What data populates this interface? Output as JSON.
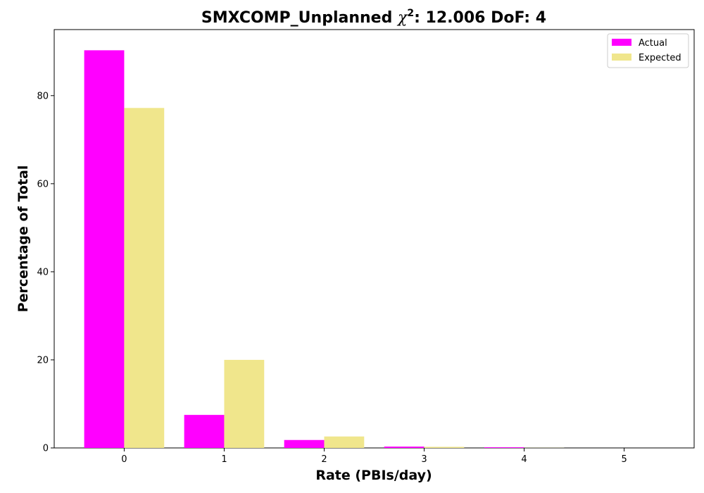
{
  "chart_data": {
    "type": "bar",
    "title_prefix": "SMXCOMP_Unplanned ",
    "title_symbol": "χ",
    "title_superscript": "2",
    "title_suffix": ": 12.006 DoF: 4",
    "xlabel": "Rate (PBIs/day)",
    "ylabel": "Percentage of Total",
    "categories": [
      "0",
      "1",
      "2",
      "3",
      "4",
      "5"
    ],
    "series": [
      {
        "name": "Actual",
        "color": "#ff00ff",
        "values": [
          90.3,
          7.5,
          1.8,
          0.3,
          0.15,
          0.0
        ]
      },
      {
        "name": "Expected",
        "color": "#f0e68c",
        "values": [
          77.2,
          20.0,
          2.6,
          0.25,
          0.03,
          0.0
        ]
      }
    ],
    "ylim": [
      0,
      95
    ],
    "yticks": [
      0,
      20,
      40,
      60,
      80
    ],
    "xlim": [
      -0.7,
      5.7
    ],
    "legend_position": "top-right",
    "grid": false
  }
}
